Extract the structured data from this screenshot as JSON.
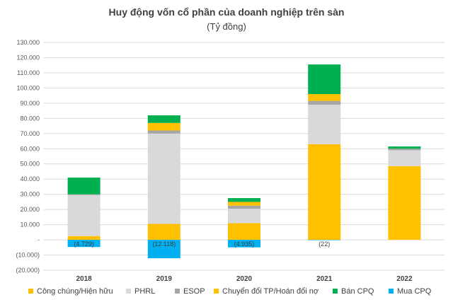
{
  "chart_data": {
    "type": "stacked-bar",
    "title": "Huy động vốn cổ phần của doanh nghiệp trên sàn",
    "subtitle": "(Tỷ đồng)",
    "categories": [
      "2018",
      "2019",
      "2020",
      "2021",
      "2022"
    ],
    "ylim": [
      -20000,
      130000
    ],
    "yticks": [
      -20000,
      -10000,
      0,
      10000,
      20000,
      30000,
      40000,
      50000,
      60000,
      70000,
      80000,
      90000,
      100000,
      110000,
      120000,
      130000
    ],
    "ytick_labels": [
      "(20.000)",
      "(10.000)",
      "-",
      "10.000",
      "20.000",
      "30.000",
      "40.000",
      "50.000",
      "60.000",
      "70.000",
      "80.000",
      "90.000",
      "100.000",
      "110.000",
      "120.000",
      "130.000"
    ],
    "gridlines": true,
    "legend_position": "bottom",
    "series": [
      {
        "name": "Công chúng/Hiện hữu",
        "color": "#FFC000",
        "values": [
          2500,
          10500,
          11000,
          63000,
          48500
        ]
      },
      {
        "name": "PHRL",
        "color": "#D9D9D9",
        "values": [
          27000,
          59500,
          9500,
          26000,
          10500
        ]
      },
      {
        "name": "ESOP",
        "color": "#A6A6A6",
        "values": [
          500,
          2000,
          2000,
          2500,
          1000
        ]
      },
      {
        "name": "Chuyển đổi TP/Hoán đổi nợ",
        "color": "#FFC000",
        "values": [
          0,
          5000,
          2500,
          4500,
          0
        ]
      },
      {
        "name": "Bán CPQ",
        "color": "#00B050",
        "values": [
          11000,
          5000,
          2500,
          19500,
          1500
        ]
      },
      {
        "name": "Mua CPQ",
        "color": "#00B0F0",
        "values": [
          -4729,
          -12118,
          -4935,
          -22,
          0
        ]
      }
    ],
    "negative_labels": [
      "(4.729)",
      "(12.118)",
      "(4.935)",
      "(22)",
      ""
    ]
  }
}
